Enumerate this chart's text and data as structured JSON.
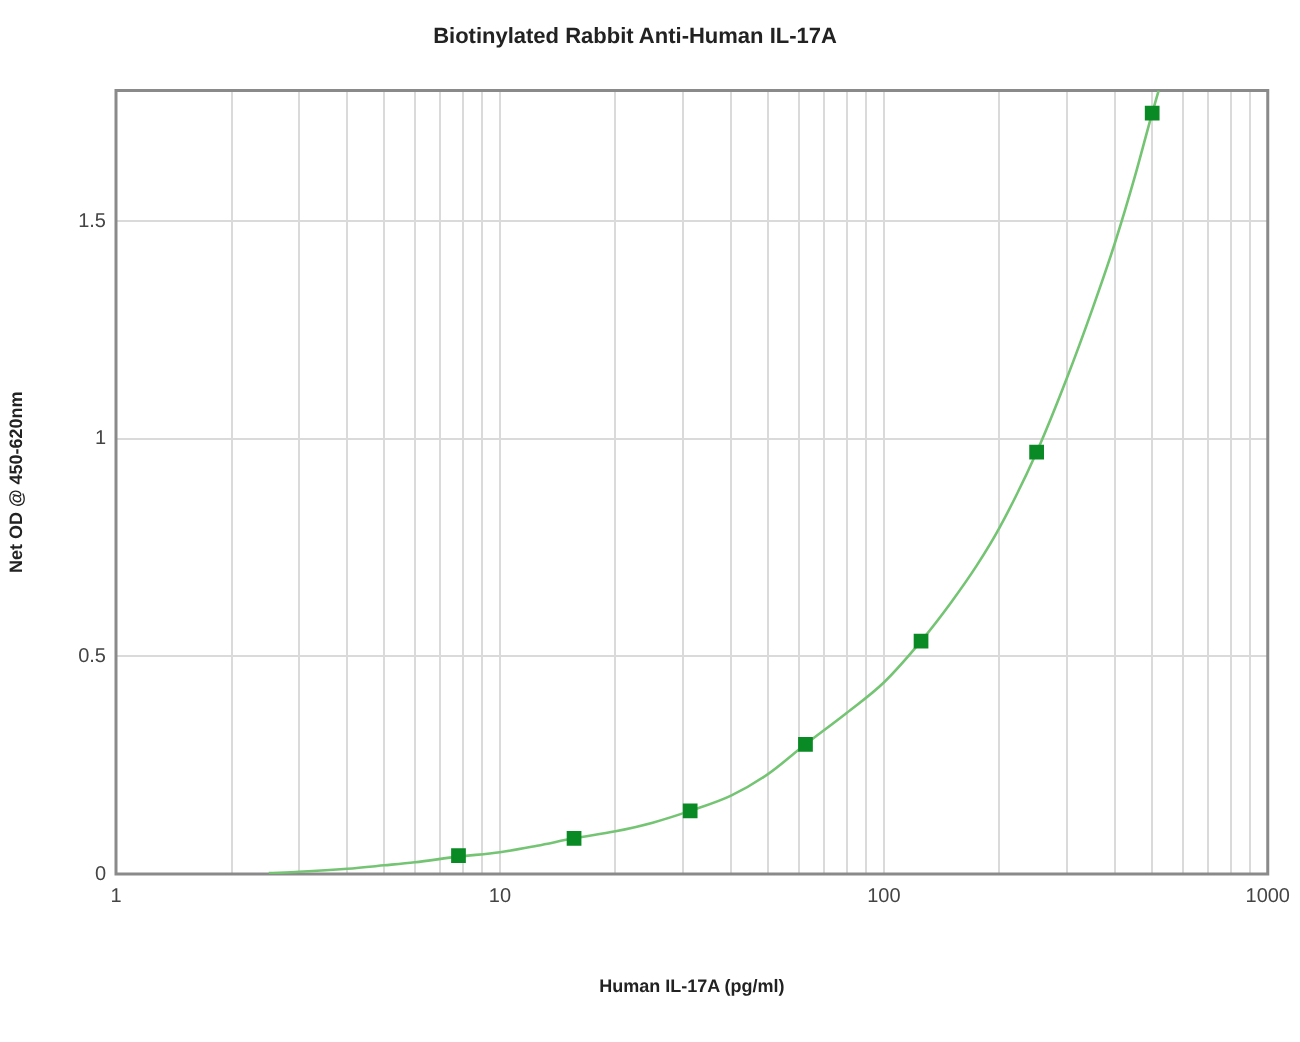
{
  "chart_data": {
    "type": "scatter",
    "title": "Biotinylated Rabbit Anti-Human IL-17A",
    "xlabel": "Human IL-17A (pg/ml)",
    "ylabel": "Net OD @ 450-620nm",
    "log": "x",
    "xlim": [
      1,
      1000
    ],
    "xticks": [
      1,
      {
        "value": 2,
        "label": null
      },
      {
        "value": 3,
        "label": null
      },
      {
        "value": 4,
        "label": null
      },
      {
        "value": 5,
        "label": null
      },
      {
        "value": 6,
        "label": null
      },
      {
        "value": 7,
        "label": null
      },
      {
        "value": 8,
        "label": null
      },
      {
        "value": 9,
        "label": null
      },
      10,
      {
        "value": 20,
        "label": null
      },
      {
        "value": 30,
        "label": null
      },
      {
        "value": 40,
        "label": null
      },
      {
        "value": 50,
        "label": null
      },
      {
        "value": 60,
        "label": null
      },
      {
        "value": 70,
        "label": null
      },
      {
        "value": 80,
        "label": null
      },
      {
        "value": 90,
        "label": null
      },
      100,
      {
        "value": 200,
        "label": null
      },
      {
        "value": 300,
        "label": null
      },
      {
        "value": 400,
        "label": null
      },
      {
        "value": 500,
        "label": null
      },
      {
        "value": 600,
        "label": null
      },
      {
        "value": 700,
        "label": null
      },
      {
        "value": 800,
        "label": null
      },
      {
        "value": 900,
        "label": null
      },
      1000
    ],
    "ylim": [
      0,
      1.8
    ],
    "yticks": [
      0,
      0.5,
      1,
      1.5
    ],
    "grid": true,
    "series": [
      {
        "type": "line",
        "color": "#74c474",
        "marker": "none",
        "x": [
          2.5,
          3,
          4,
          5,
          6,
          7.8,
          10,
          12.5,
          15.6,
          20,
          25,
          31.3,
          40,
          50,
          62.5,
          80,
          100,
          125,
          150,
          175,
          200,
          250,
          300,
          350,
          400,
          450,
          500,
          520
        ],
        "values": [
          0.002,
          0.005,
          0.012,
          0.02,
          0.027,
          0.04,
          0.05,
          0.065,
          0.082,
          0.098,
          0.118,
          0.145,
          0.18,
          0.23,
          0.298,
          0.37,
          0.44,
          0.535,
          0.625,
          0.71,
          0.795,
          0.969,
          1.14,
          1.3,
          1.45,
          1.6,
          1.748,
          1.8
        ]
      },
      {
        "color": "#0a8a24",
        "marker": "square",
        "x": [
          7.8,
          15.6,
          31.3,
          62.5,
          125,
          250,
          500
        ],
        "values": [
          0.042,
          0.082,
          0.145,
          0.298,
          0.535,
          0.969,
          1.748
        ]
      }
    ]
  }
}
